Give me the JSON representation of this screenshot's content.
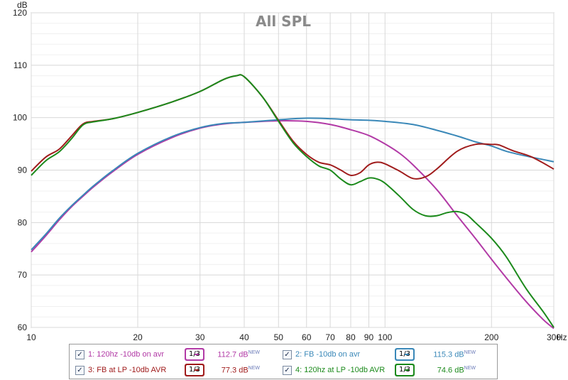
{
  "chart_data": {
    "type": "line",
    "title": "All SPL",
    "ylabel": "dB",
    "xunit": "Hz",
    "xscale": "log",
    "xlim": [
      10,
      300
    ],
    "ylim": [
      60,
      120
    ],
    "x_ticks": [
      10,
      20,
      30,
      40,
      50,
      60,
      70,
      80,
      90,
      100,
      200,
      300
    ],
    "x_tick_labels": [
      "10",
      "20",
      "30",
      "40",
      "50",
      "60",
      "70",
      "80",
      "90",
      "100",
      "200",
      "300"
    ],
    "y_ticks": [
      60,
      70,
      80,
      90,
      100,
      110,
      120
    ],
    "y_tick_labels": [
      "60",
      "70",
      "80",
      "90",
      "100",
      "110",
      "120"
    ],
    "grid": true,
    "series": [
      {
        "name": "1: 120hz -10db on avr",
        "color": "#b23aa6",
        "points": [
          [
            10,
            74.4
          ],
          [
            11,
            77.5
          ],
          [
            12,
            80.5
          ],
          [
            13,
            83.0
          ],
          [
            14,
            85.0
          ],
          [
            15,
            86.8
          ],
          [
            17,
            89.7
          ],
          [
            20,
            93.0
          ],
          [
            25,
            96.2
          ],
          [
            30,
            98.0
          ],
          [
            35,
            98.8
          ],
          [
            40,
            99.1
          ],
          [
            50,
            99.4
          ],
          [
            60,
            99.3
          ],
          [
            70,
            98.7
          ],
          [
            80,
            97.7
          ],
          [
            90,
            96.6
          ],
          [
            100,
            95.0
          ],
          [
            110,
            93.2
          ],
          [
            120,
            91.0
          ],
          [
            140,
            86.3
          ],
          [
            160,
            81.3
          ],
          [
            180,
            77.0
          ],
          [
            200,
            73.0
          ],
          [
            220,
            69.5
          ],
          [
            250,
            65.0
          ],
          [
            280,
            61.5
          ],
          [
            300,
            59.8
          ]
        ]
      },
      {
        "name": "2: FB -10db on avr",
        "color": "#3a88b8",
        "points": [
          [
            10,
            74.8
          ],
          [
            11,
            77.8
          ],
          [
            12,
            80.8
          ],
          [
            13,
            83.2
          ],
          [
            14,
            85.2
          ],
          [
            15,
            87.0
          ],
          [
            17,
            89.9
          ],
          [
            20,
            93.2
          ],
          [
            25,
            96.4
          ],
          [
            30,
            98.1
          ],
          [
            35,
            98.9
          ],
          [
            40,
            99.1
          ],
          [
            50,
            99.6
          ],
          [
            60,
            99.9
          ],
          [
            70,
            99.8
          ],
          [
            80,
            99.6
          ],
          [
            90,
            99.5
          ],
          [
            100,
            99.3
          ],
          [
            120,
            98.7
          ],
          [
            140,
            97.6
          ],
          [
            160,
            96.5
          ],
          [
            180,
            95.4
          ],
          [
            200,
            94.6
          ],
          [
            220,
            93.6
          ],
          [
            250,
            92.7
          ],
          [
            300,
            91.6
          ]
        ]
      },
      {
        "name": "3: FB at LP -10db AVR",
        "color": "#a01c1c",
        "points": [
          [
            10,
            89.8
          ],
          [
            11,
            92.5
          ],
          [
            12,
            94.0
          ],
          [
            13,
            96.5
          ],
          [
            14,
            98.8
          ],
          [
            15,
            99.3
          ],
          [
            17,
            99.8
          ],
          [
            20,
            101.0
          ],
          [
            25,
            103.0
          ],
          [
            30,
            105.0
          ],
          [
            35,
            107.3
          ],
          [
            38,
            108.0
          ],
          [
            40,
            107.8
          ],
          [
            45,
            104.0
          ],
          [
            50,
            99.5
          ],
          [
            55,
            95.5
          ],
          [
            60,
            93.0
          ],
          [
            65,
            91.5
          ],
          [
            70,
            91.0
          ],
          [
            75,
            90.0
          ],
          [
            80,
            89.0
          ],
          [
            85,
            89.5
          ],
          [
            90,
            91.0
          ],
          [
            95,
            91.5
          ],
          [
            100,
            91.2
          ],
          [
            110,
            89.8
          ],
          [
            120,
            88.4
          ],
          [
            130,
            88.7
          ],
          [
            140,
            90.2
          ],
          [
            160,
            93.6
          ],
          [
            180,
            94.9
          ],
          [
            200,
            94.9
          ],
          [
            210,
            94.8
          ],
          [
            230,
            93.7
          ],
          [
            260,
            92.5
          ],
          [
            300,
            90.2
          ]
        ]
      },
      {
        "name": "4: 120hz at LP -10db AVR",
        "color": "#1c8a1c",
        "points": [
          [
            10,
            89.0
          ],
          [
            11,
            91.8
          ],
          [
            12,
            93.5
          ],
          [
            13,
            96.0
          ],
          [
            14,
            98.6
          ],
          [
            15,
            99.2
          ],
          [
            17,
            99.8
          ],
          [
            20,
            101.0
          ],
          [
            25,
            103.0
          ],
          [
            30,
            105.0
          ],
          [
            35,
            107.3
          ],
          [
            38,
            108.0
          ],
          [
            40,
            107.8
          ],
          [
            45,
            104.0
          ],
          [
            50,
            99.3
          ],
          [
            55,
            95.2
          ],
          [
            60,
            92.6
          ],
          [
            65,
            90.8
          ],
          [
            70,
            90.0
          ],
          [
            75,
            88.3
          ],
          [
            80,
            87.2
          ],
          [
            85,
            87.8
          ],
          [
            90,
            88.5
          ],
          [
            95,
            88.3
          ],
          [
            100,
            87.5
          ],
          [
            110,
            85.0
          ],
          [
            120,
            82.5
          ],
          [
            130,
            81.3
          ],
          [
            140,
            81.3
          ],
          [
            150,
            81.9
          ],
          [
            160,
            82.1
          ],
          [
            170,
            81.5
          ],
          [
            180,
            80.0
          ],
          [
            200,
            77.0
          ],
          [
            220,
            73.5
          ],
          [
            250,
            67.5
          ],
          [
            280,
            63.0
          ],
          [
            300,
            60.0
          ]
        ]
      }
    ],
    "legend": {
      "placement": "bottom",
      "entries": [
        {
          "check": "✓",
          "label": "1: 120hz -10db on avr",
          "smoothing": "1/3",
          "value": "112.7 dB",
          "badge": "NEW",
          "color": "#b23aa6"
        },
        {
          "check": "✓",
          "label": "2: FB -10db on avr",
          "smoothing": "1/3",
          "value": "115.3 dB",
          "badge": "NEW",
          "color": "#3a88b8"
        },
        {
          "check": "✓",
          "label": "3: FB at LP -10db AVR",
          "smoothing": "1/3",
          "value": "77.3 dB",
          "badge": "NEW",
          "color": "#a01c1c"
        },
        {
          "check": "✓",
          "label": "4: 120hz at LP -10db AVR",
          "smoothing": "1/3",
          "value": "74.6 dB",
          "badge": "NEW",
          "color": "#1c8a1c"
        }
      ]
    }
  }
}
